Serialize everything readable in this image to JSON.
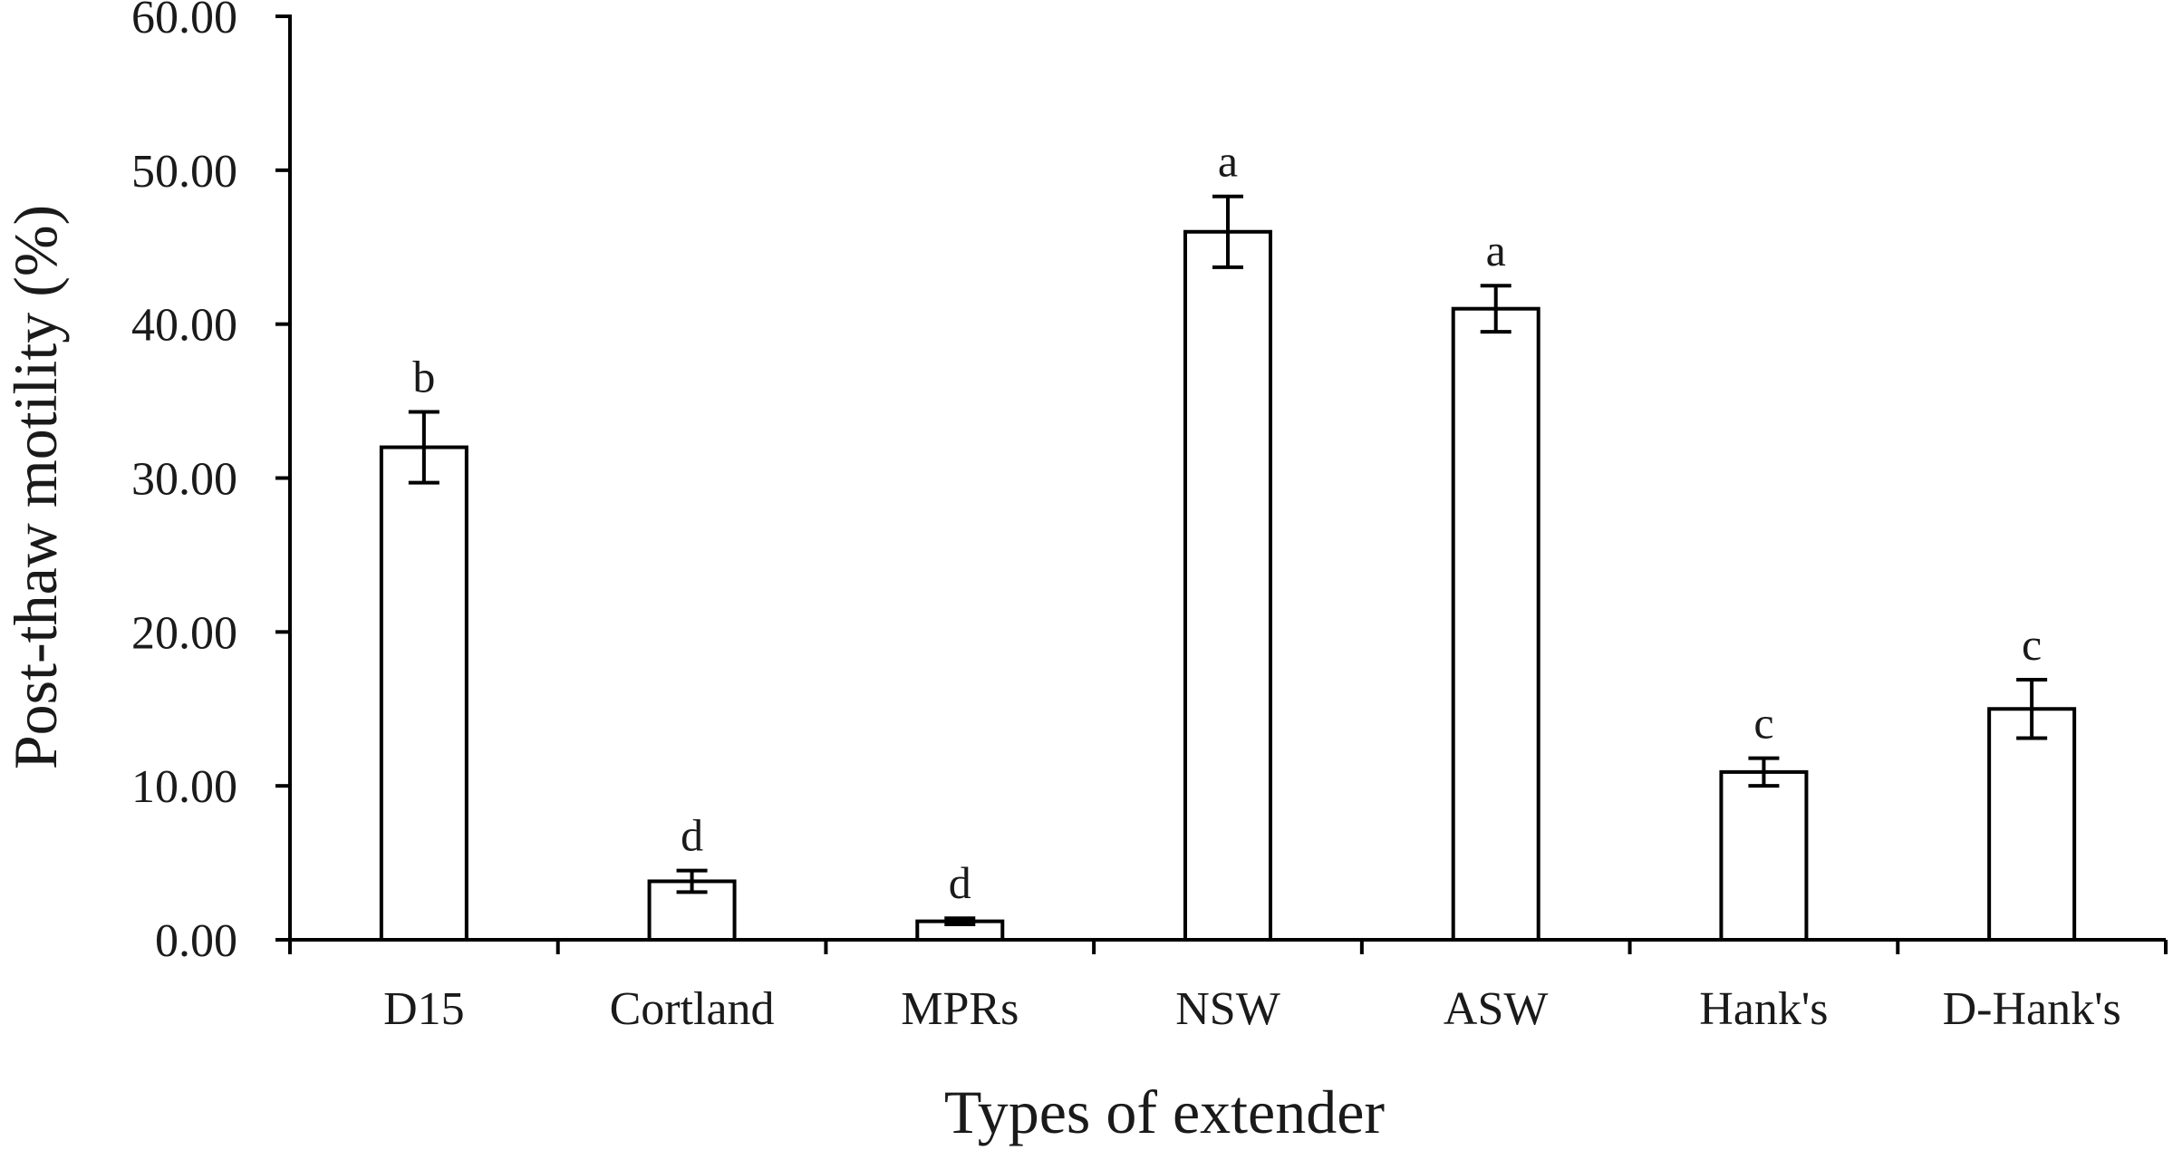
{
  "chart_data": {
    "type": "bar",
    "title": "",
    "xlabel": "Types of extender",
    "ylabel": "Post-thaw motility (%)",
    "ylim": [
      0,
      60
    ],
    "yticks": [
      "0.00",
      "10.00",
      "20.00",
      "30.00",
      "40.00",
      "50.00",
      "60.00"
    ],
    "ytick_values": [
      0,
      10,
      20,
      30,
      40,
      50,
      60
    ],
    "categories": [
      "D15",
      "Cortland",
      "MPRs",
      "NSW",
      "ASW",
      "Hank's",
      "D-Hank's"
    ],
    "values": [
      32.0,
      3.8,
      1.2,
      46.0,
      41.0,
      10.9,
      15.0
    ],
    "errors": [
      2.3,
      0.7,
      0.2,
      2.3,
      1.5,
      0.9,
      1.9
    ],
    "significance": [
      "b",
      "d",
      "d",
      "a",
      "a",
      "c",
      "c"
    ],
    "grid": false,
    "legend": "none",
    "colors": {
      "bar_fill": "#ffffff",
      "bar_stroke": "#000000",
      "axis": "#000000",
      "text": "#1a1a1a"
    }
  }
}
